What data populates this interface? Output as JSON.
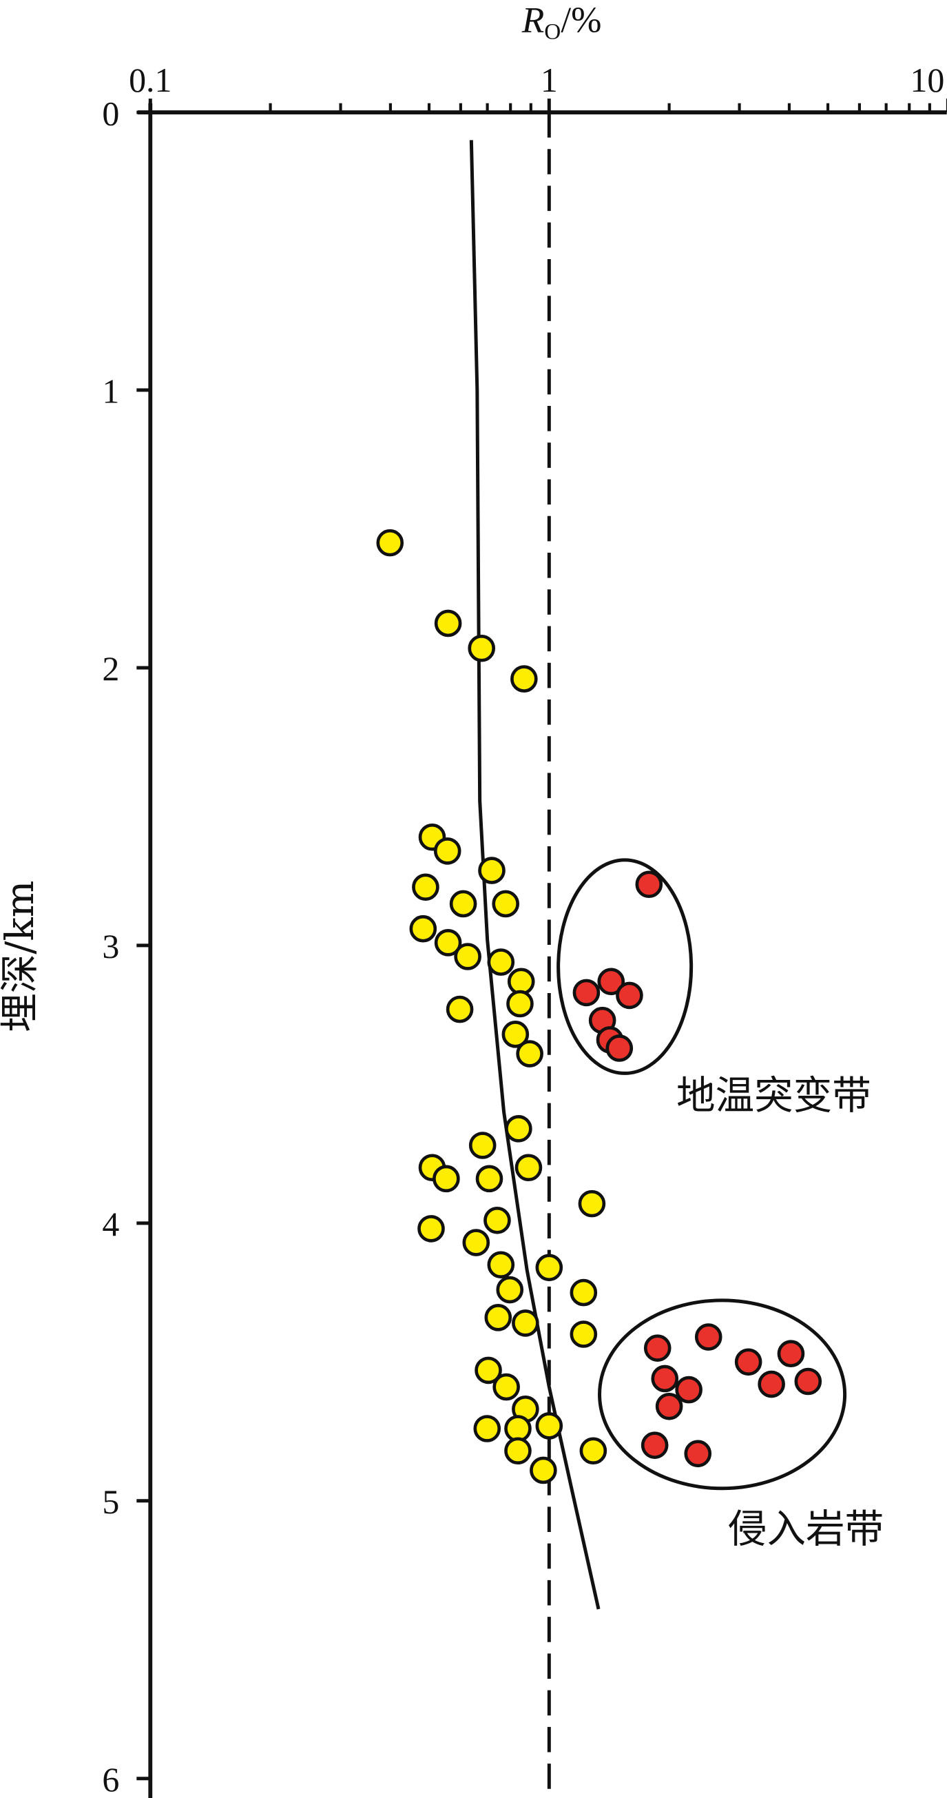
{
  "chart_data": {
    "type": "scatter",
    "xlabel": [
      "R",
      "O",
      "/%"
    ],
    "ylabel": "埋深/km",
    "xscale": "log",
    "xlim": [
      0.1,
      10
    ],
    "xticks": [
      0.1,
      1,
      10
    ],
    "xminorticks": [
      0.2,
      0.3,
      0.4,
      0.5,
      0.6,
      0.7,
      0.8,
      0.9,
      2,
      3,
      4,
      5,
      6,
      7,
      8,
      9
    ],
    "ylim": [
      0,
      6
    ],
    "yticks": [
      0,
      1,
      2,
      3,
      4,
      5,
      6
    ],
    "reference_x": 1,
    "series": [
      {
        "color": "#ffed00",
        "x": [
          0.399,
          0.558,
          0.677,
          0.865,
          0.509,
          0.556,
          0.718,
          0.49,
          0.609,
          0.778,
          0.483,
          0.558,
          0.625,
          0.757,
          0.851,
          0.845,
          0.597,
          0.823,
          0.894,
          0.838,
          0.681,
          0.509,
          0.888,
          0.552,
          0.708,
          1.28,
          0.741,
          0.506,
          0.656,
          0.757,
          1.0,
          0.797,
          1.22,
          0.745,
          0.872,
          1.22,
          0.704,
          0.781,
          0.872,
          1.0,
          0.699,
          0.835,
          0.835,
          1.29,
          0.967
        ],
        "values": [
          1.55,
          1.84,
          1.93,
          2.04,
          2.61,
          2.66,
          2.73,
          2.79,
          2.85,
          2.85,
          2.94,
          2.99,
          3.04,
          3.06,
          3.13,
          3.21,
          3.23,
          3.32,
          3.39,
          3.66,
          3.72,
          3.8,
          3.8,
          3.84,
          3.84,
          3.93,
          3.99,
          4.02,
          4.07,
          4.15,
          4.16,
          4.24,
          4.25,
          4.34,
          4.36,
          4.4,
          4.53,
          4.59,
          4.67,
          4.73,
          4.74,
          4.74,
          4.82,
          4.82,
          4.89
        ]
      },
      {
        "color": "#e8322b",
        "x": [
          1.78,
          1.43,
          1.24,
          1.59,
          1.36,
          1.42,
          1.5,
          2.51,
          1.87,
          4.04,
          3.16,
          1.95,
          4.46,
          3.61,
          2.24,
          2.0,
          1.84,
          2.36
        ],
        "values": [
          2.78,
          3.13,
          3.17,
          3.18,
          3.27,
          3.34,
          3.37,
          4.41,
          4.45,
          4.47,
          4.5,
          4.56,
          4.57,
          4.58,
          4.6,
          4.66,
          4.8,
          4.83
        ]
      }
    ],
    "trend": {
      "x": [
        0.638,
        0.66,
        0.67,
        0.7,
        0.77,
        0.88,
        1.0,
        1.14,
        1.33
      ],
      "values": [
        0.1,
        1.0,
        2.48,
        2.98,
        3.6,
        4.17,
        4.59,
        4.96,
        5.39
      ]
    },
    "annotations": [
      "地温突变带",
      "侵入岩带"
    ]
  }
}
